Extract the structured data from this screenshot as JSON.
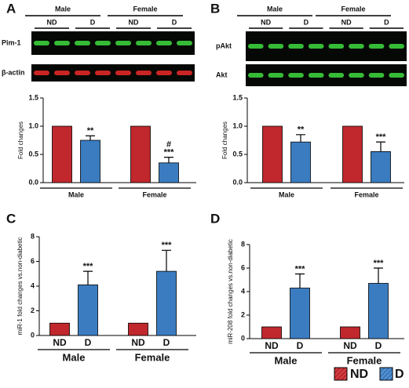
{
  "chart_data": [
    {
      "type": "bar",
      "panel": "A",
      "blot_header": [
        "Male",
        "Female"
      ],
      "lanes": [
        "ND",
        "D",
        "ND",
        "D"
      ],
      "blot_rows": [
        {
          "label": "Pim-1",
          "color": "#3ccf3c"
        },
        {
          "label": "β-actin",
          "color": "#e02828"
        }
      ],
      "y_label": "Fold changes",
      "categories": [
        "Male",
        "Female"
      ],
      "series": [
        {
          "name": "ND",
          "color": "#c0282d",
          "values": [
            1,
            1
          ]
        },
        {
          "name": "D",
          "color": "#3b7cc0",
          "values": [
            0.75,
            0.35
          ],
          "errors": [
            0.08,
            0.1
          ]
        }
      ],
      "annotations": [
        [
          "**"
        ],
        [
          "#",
          "***"
        ]
      ],
      "ylim": [
        0,
        1.5
      ],
      "yticks": [
        {
          "value": 0,
          "label": "0.0"
        },
        0.5,
        {
          "value": 1,
          "label": "1.0"
        },
        1.5
      ]
    },
    {
      "type": "bar",
      "panel": "B",
      "blot_header": [
        "Male",
        "Female"
      ],
      "lanes": [
        "ND",
        "D",
        "ND",
        "D"
      ],
      "blot_rows": [
        {
          "label": "pAkt",
          "color": "#3ccf3c"
        },
        {
          "label": "Akt",
          "color": "#3ccf3c"
        }
      ],
      "y_label": "Fold changes",
      "categories": [
        "Male",
        "Female"
      ],
      "series": [
        {
          "name": "ND",
          "color": "#c0282d",
          "values": [
            1,
            1
          ]
        },
        {
          "name": "D",
          "color": "#3b7cc0",
          "values": [
            0.72,
            0.55
          ],
          "errors": [
            0.13,
            0.17
          ]
        }
      ],
      "annotations": [
        [
          "**"
        ],
        [
          "***"
        ]
      ],
      "ylim": [
        0,
        1.5
      ],
      "yticks": [
        {
          "value": 0,
          "label": "0.0"
        },
        0.5,
        {
          "value": 1,
          "label": "1.0"
        },
        1.5
      ]
    },
    {
      "type": "bar",
      "panel": "C",
      "y_label": "miR-1 fold changes vs.non-diabetic",
      "categories": [
        "Male",
        "Female"
      ],
      "series": [
        {
          "name": "ND",
          "color": "#c0282d",
          "values": [
            1,
            1
          ]
        },
        {
          "name": "D",
          "color": "#3b7cc0",
          "values": [
            4.1,
            5.2
          ],
          "errors": [
            1.1,
            1.7
          ]
        }
      ],
      "annotations": [
        [
          "***"
        ],
        [
          "***"
        ]
      ],
      "ylim": [
        0,
        8
      ],
      "yticks": [
        0,
        2,
        4,
        6,
        8
      ]
    },
    {
      "type": "bar",
      "panel": "D",
      "y_label": "miR-208 fold changes vs.non-diabetic",
      "categories": [
        "Male",
        "Female"
      ],
      "series": [
        {
          "name": "ND",
          "color": "#c0282d",
          "values": [
            1,
            1
          ]
        },
        {
          "name": "D",
          "color": "#3b7cc0",
          "values": [
            4.3,
            4.7
          ],
          "errors": [
            1.2,
            1.3
          ]
        }
      ],
      "annotations": [
        [
          "***"
        ],
        [
          "***"
        ]
      ],
      "ylim": [
        0,
        8
      ],
      "yticks": [
        0,
        2,
        4,
        6,
        8
      ]
    }
  ]
}
